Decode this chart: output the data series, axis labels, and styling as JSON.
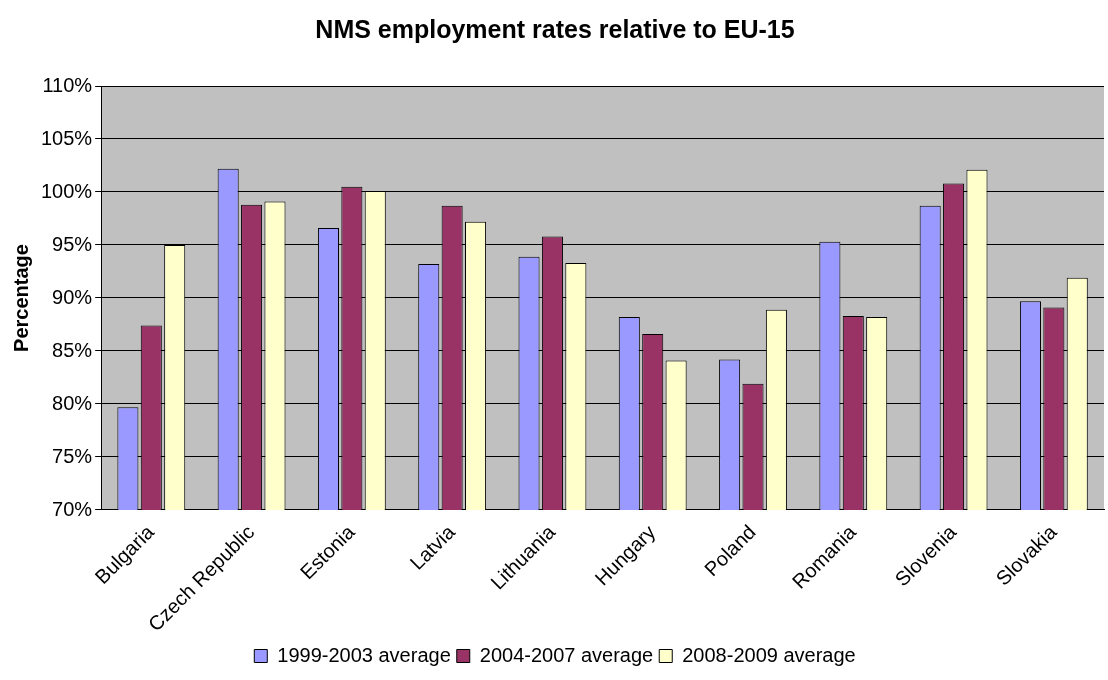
{
  "chart_data": {
    "type": "bar",
    "title": "NMS employment rates relative to EU-15",
    "ylabel": "Percentage",
    "categories": [
      "Bulgaria",
      "Czech Republic",
      "Estonia",
      "Latvia",
      "Lithuania",
      "Hungary",
      "Poland",
      "Romania",
      "Slovenia",
      "Slovakia"
    ],
    "series": [
      {
        "name": "1999-2003 average",
        "color": "#9999ff",
        "values": [
          79.7,
          102.2,
          96.6,
          93.2,
          93.9,
          88.2,
          84.2,
          95.3,
          98.7,
          89.7
        ]
      },
      {
        "name": "2004-2007 average",
        "color": "#993366",
        "values": [
          87.4,
          98.8,
          100.5,
          98.7,
          95.8,
          86.6,
          81.9,
          88.3,
          100.8,
          89.1
        ]
      },
      {
        "name": "2008-2009 average",
        "color": "#ffffcc",
        "values": [
          95.0,
          99.1,
          100.1,
          97.2,
          93.3,
          84.1,
          88.9,
          88.2,
          102.1,
          91.9
        ]
      }
    ],
    "ylim": [
      70,
      110
    ],
    "yticks": [
      {
        "value": 70,
        "label": "70%"
      },
      {
        "value": 75,
        "label": "75%"
      },
      {
        "value": 80,
        "label": "80%"
      },
      {
        "value": 85,
        "label": "85%"
      },
      {
        "value": 90,
        "label": "90%"
      },
      {
        "value": 95,
        "label": "95%"
      },
      {
        "value": 100,
        "label": "100%"
      },
      {
        "value": 105,
        "label": "105%"
      },
      {
        "value": 110,
        "label": "110%"
      }
    ],
    "grid": "y",
    "legend": "bottom"
  }
}
